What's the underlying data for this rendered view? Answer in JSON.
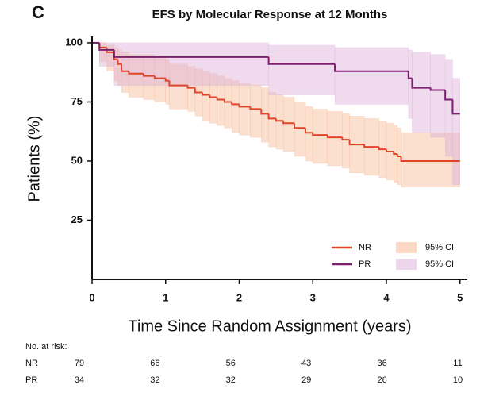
{
  "chart_data": {
    "type": "km",
    "panel_label": "C",
    "title": "EFS by Molecular Response at 12 Months",
    "x_label": "Time Since Random Assignment (years)",
    "y_label": "Patients (%)",
    "xlim": [
      0,
      5.1
    ],
    "ylim": [
      0,
      103
    ],
    "xticks": [
      0,
      1,
      2,
      3,
      4,
      5
    ],
    "yticks": [
      25,
      50,
      75,
      100
    ],
    "legend": "lower right",
    "ci_label": "95% CI",
    "series": [
      {
        "name": "NR",
        "color": "#e0452a",
        "ci_color": "#f6b894",
        "x": [
          0,
          0.1,
          0.2,
          0.3,
          0.35,
          0.4,
          0.5,
          0.7,
          0.85,
          1.0,
          1.05,
          1.3,
          1.4,
          1.5,
          1.6,
          1.7,
          1.8,
          1.9,
          2.0,
          2.15,
          2.3,
          2.4,
          2.5,
          2.6,
          2.75,
          2.9,
          3.0,
          3.2,
          3.4,
          3.5,
          3.7,
          3.9,
          4.0,
          4.1,
          4.15,
          4.2,
          5.0
        ],
        "values": [
          100,
          98,
          96,
          93,
          91,
          88,
          87,
          86,
          85,
          84,
          82,
          81,
          79,
          78,
          77,
          76,
          75,
          74,
          73,
          72,
          70,
          68,
          67,
          66,
          64,
          62,
          61,
          60,
          59,
          57,
          56,
          55,
          54,
          53,
          52,
          50,
          50
        ],
        "lower": [
          100,
          92,
          88,
          84,
          82,
          79,
          77,
          76,
          75,
          74,
          72,
          71,
          69,
          67,
          66,
          65,
          64,
          62,
          61,
          60,
          58,
          56,
          55,
          54,
          52,
          50,
          49,
          48,
          47,
          45,
          44,
          43,
          42,
          41,
          40,
          39,
          39
        ],
        "upper": [
          100,
          100,
          99,
          98,
          97,
          96,
          95,
          95,
          94,
          93,
          91,
          90,
          89,
          88,
          87,
          86,
          85,
          84,
          83,
          82,
          81,
          79,
          78,
          77,
          75,
          73,
          72,
          71,
          70,
          69,
          68,
          67,
          66,
          65,
          64,
          62,
          62
        ]
      },
      {
        "name": "PR",
        "color": "#7b1f6e",
        "ci_color": "#dcb0d8",
        "x": [
          0,
          0.1,
          0.3,
          2.4,
          3.3,
          4.3,
          4.35,
          4.6,
          4.8,
          4.9,
          5.0
        ],
        "values": [
          100,
          97,
          94,
          91,
          88,
          85,
          81,
          80,
          76,
          70,
          70
        ],
        "lower": [
          100,
          90,
          82,
          78,
          74,
          68,
          62,
          60,
          52,
          40,
          40
        ],
        "upper": [
          100,
          100,
          100,
          99,
          98,
          97,
          96,
          95,
          93,
          85,
          85
        ]
      }
    ],
    "risk_table": {
      "title": "No. at risk:",
      "rows": [
        {
          "name": "NR",
          "values": [
            79,
            66,
            56,
            43,
            36,
            11
          ]
        },
        {
          "name": "PR",
          "values": [
            34,
            32,
            32,
            29,
            26,
            10
          ]
        }
      ]
    }
  }
}
